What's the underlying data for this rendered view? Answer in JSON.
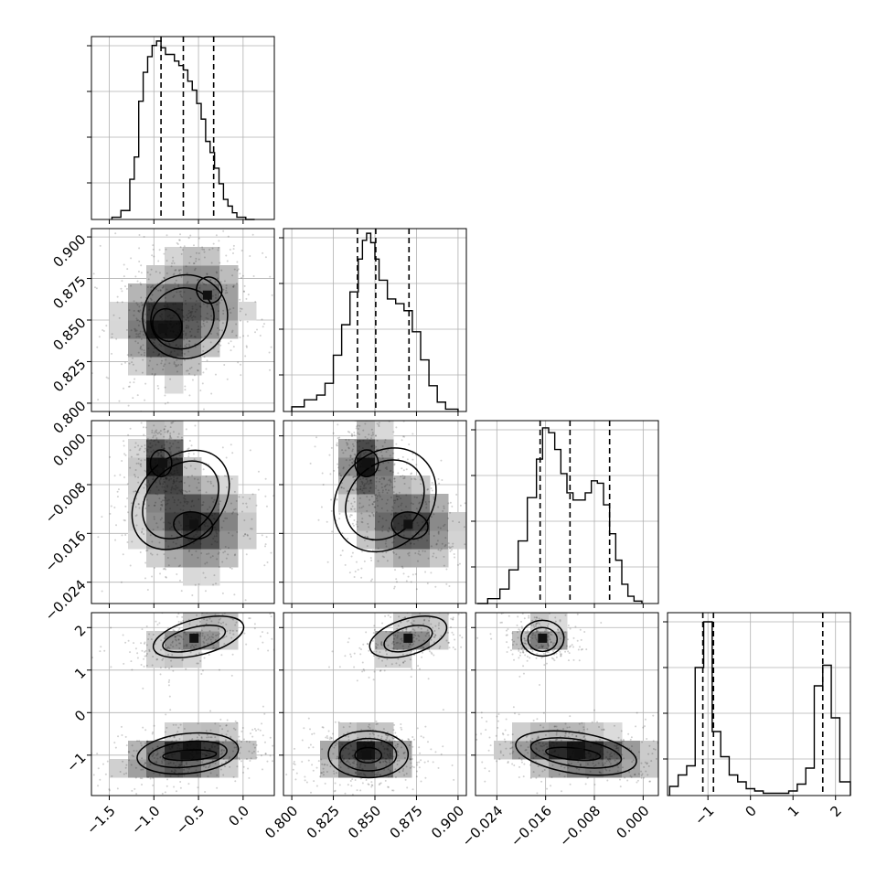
{
  "chart_data": {
    "type": "corner",
    "parameters": [
      {
        "range": [
          -1.7,
          0.35
        ],
        "ticks": [
          -1.5,
          -1.0,
          -0.5,
          0.0
        ],
        "tick_labels": [
          "−1.5",
          "−1.0",
          "−0.5",
          "0.0"
        ],
        "quantiles": [
          -0.92,
          -0.67,
          -0.33
        ],
        "histogram": {
          "bin_edges": [
            -1.47,
            -1.37,
            -1.27,
            -1.22,
            -1.17,
            -1.12,
            -1.07,
            -1.02,
            -0.97,
            -0.92,
            -0.87,
            -0.82,
            -0.77,
            -0.72,
            -0.67,
            -0.62,
            -0.57,
            -0.52,
            -0.47,
            -0.42,
            -0.37,
            -0.32,
            -0.27,
            -0.22,
            -0.17,
            -0.12,
            -0.07,
            0.03,
            0.13
          ],
          "counts": [
            1,
            4,
            18,
            28,
            53,
            66,
            73,
            78,
            80,
            77,
            74,
            74,
            71,
            69,
            67,
            62,
            58,
            52,
            45,
            35,
            30,
            23,
            16,
            9,
            6,
            3,
            1,
            0
          ]
        },
        "hist_ylim": [
          0,
          82
        ]
      },
      {
        "range": [
          0.795,
          0.905
        ],
        "ticks": [
          0.8,
          0.825,
          0.85,
          0.875,
          0.9
        ],
        "tick_labels": [
          "0.800",
          "0.825",
          "0.850",
          "0.875",
          "0.900"
        ],
        "quantiles": [
          0.8395,
          0.8505,
          0.8705
        ],
        "histogram": {
          "bin_edges": [
            0.8,
            0.8075,
            0.815,
            0.82,
            0.825,
            0.83,
            0.835,
            0.84,
            0.8425,
            0.845,
            0.8475,
            0.85,
            0.8525,
            0.8575,
            0.8625,
            0.8675,
            0.8725,
            0.8775,
            0.8825,
            0.8875,
            0.8925,
            0.9
          ],
          "counts": [
            2,
            5,
            7,
            12,
            24,
            37,
            51,
            65,
            73,
            76,
            72,
            65,
            56,
            48,
            46,
            43,
            34,
            22,
            11,
            4,
            1
          ]
        },
        "hist_ylim": [
          0,
          78
        ]
      },
      {
        "range": [
          -0.0275,
          0.0025
        ],
        "ticks": [
          -0.024,
          -0.016,
          -0.008,
          0.0
        ],
        "tick_labels": [
          "−0.024",
          "−0.016",
          "−0.008",
          "0.000"
        ],
        "quantiles": [
          -0.0169,
          -0.012,
          -0.0055
        ],
        "histogram": {
          "bin_edges": [
            -0.0272,
            -0.0255,
            -0.0235,
            -0.022,
            -0.0205,
            -0.019,
            -0.0175,
            -0.0165,
            -0.0155,
            -0.0145,
            -0.0135,
            -0.0125,
            -0.0115,
            -0.0105,
            -0.0095,
            -0.0085,
            -0.0075,
            -0.0065,
            -0.0055,
            -0.0045,
            -0.0035,
            -0.0025,
            -0.0015,
            -0.0002
          ],
          "counts": [
            0,
            2,
            6,
            14,
            26,
            44,
            60,
            73,
            71,
            64,
            54,
            46,
            43,
            43,
            46,
            51,
            50,
            41,
            29,
            18,
            8,
            3,
            1
          ]
        },
        "hist_ylim": [
          0,
          76
        ]
      },
      {
        "range": [
          -1.95,
          2.35
        ],
        "ticks": [
          -1,
          0,
          1,
          2
        ],
        "tick_labels": [
          "−1",
          "0",
          "1",
          "2"
        ],
        "quantiles": [
          -1.12,
          -0.87,
          1.7
        ],
        "histogram": {
          "bin_edges": [
            -1.9,
            -1.7,
            -1.5,
            -1.3,
            -1.1,
            -0.9,
            -0.7,
            -0.5,
            -0.3,
            -0.1,
            0.1,
            0.3,
            0.5,
            0.7,
            0.9,
            1.1,
            1.3,
            1.5,
            1.7,
            1.9,
            2.1,
            2.35
          ],
          "counts": [
            4,
            9,
            13,
            56,
            76,
            28,
            17,
            9,
            6,
            3,
            2,
            1,
            1,
            1,
            2,
            5,
            12,
            48,
            57,
            34,
            6
          ]
        },
        "hist_ylim": [
          0,
          80
        ]
      }
    ],
    "pairs": [
      {
        "x": 0,
        "y": 1,
        "blobs": [
          {
            "cx": -0.9,
            "cy": 0.845,
            "sx": 0.16,
            "sy": 0.011,
            "rot": 0.3,
            "w": 1.0
          },
          {
            "cx": -0.4,
            "cy": 0.865,
            "sx": 0.16,
            "sy": 0.012,
            "rot": 0.4,
            "w": 0.6
          }
        ],
        "contours": [
          {
            "level": 1,
            "cx": -0.65,
            "cy": 0.852,
            "rx": 0.48,
            "ry": 0.025,
            "rot": 0.55
          },
          {
            "level": 2,
            "cx": -0.68,
            "cy": 0.851,
            "rx": 0.36,
            "ry": 0.018,
            "rot": 0.55
          },
          {
            "level": 3,
            "cx": -0.85,
            "cy": 0.847,
            "rx": 0.16,
            "ry": 0.01,
            "rot": 0.4
          },
          {
            "level": 3,
            "cx": -0.38,
            "cy": 0.868,
            "rx": 0.14,
            "ry": 0.008,
            "rot": 0.5
          }
        ]
      },
      {
        "x": 0,
        "y": 2,
        "blobs": [
          {
            "cx": -0.9,
            "cy": -0.0045,
            "sx": 0.1,
            "sy": 0.0022,
            "rot": 0,
            "w": 1.0
          },
          {
            "cx": -0.55,
            "cy": -0.0145,
            "sx": 0.22,
            "sy": 0.0028,
            "rot": -0.2,
            "w": 0.9
          }
        ],
        "contours": [
          {
            "level": 1,
            "cx": -0.7,
            "cy": -0.0105,
            "rx": 0.46,
            "ry": 0.0092,
            "rot": -0.75
          },
          {
            "level": 2,
            "cx": -0.7,
            "cy": -0.0105,
            "rx": 0.36,
            "ry": 0.0072,
            "rot": -0.75
          },
          {
            "level": 3,
            "cx": -0.92,
            "cy": -0.0045,
            "rx": 0.12,
            "ry": 0.0022,
            "rot": 0
          },
          {
            "level": 3,
            "cx": -0.56,
            "cy": -0.0147,
            "rx": 0.22,
            "ry": 0.0022,
            "rot": -0.15
          }
        ]
      },
      {
        "x": 1,
        "y": 2,
        "blobs": [
          {
            "cx": 0.845,
            "cy": -0.0045,
            "sx": 0.006,
            "sy": 0.0022,
            "rot": 0,
            "w": 1.0
          },
          {
            "cx": 0.87,
            "cy": -0.0145,
            "sx": 0.011,
            "sy": 0.0026,
            "rot": -0.2,
            "w": 0.9
          }
        ],
        "contours": [
          {
            "level": 1,
            "cx": 0.856,
            "cy": -0.0105,
            "rx": 0.028,
            "ry": 0.0092,
            "rot": -0.75
          },
          {
            "level": 2,
            "cx": 0.856,
            "cy": -0.0105,
            "rx": 0.021,
            "ry": 0.0072,
            "rot": -0.75
          },
          {
            "level": 3,
            "cx": 0.845,
            "cy": -0.0045,
            "rx": 0.007,
            "ry": 0.0022,
            "rot": 0
          },
          {
            "level": 3,
            "cx": 0.871,
            "cy": -0.0147,
            "rx": 0.011,
            "ry": 0.0022,
            "rot": -0.15
          }
        ]
      },
      {
        "x": 0,
        "y": 3,
        "blobs": [
          {
            "cx": -0.55,
            "cy": 1.75,
            "sx": 0.22,
            "sy": 0.18,
            "rot": 0.3,
            "w": 0.55
          },
          {
            "cx": -0.65,
            "cy": -1.0,
            "sx": 0.26,
            "sy": 0.2,
            "rot": 0.15,
            "w": 1.0
          }
        ],
        "contours": [
          {
            "level": 1,
            "cx": -0.5,
            "cy": 1.78,
            "rx": 0.52,
            "ry": 0.42,
            "rot": 0.25
          },
          {
            "level": 2,
            "cx": -0.55,
            "cy": 1.74,
            "rx": 0.36,
            "ry": 0.26,
            "rot": 0.25
          },
          {
            "level": 1,
            "cx": -0.62,
            "cy": -0.96,
            "rx": 0.57,
            "ry": 0.47,
            "rot": 0.1
          },
          {
            "level": 2,
            "cx": -0.62,
            "cy": -0.98,
            "rx": 0.44,
            "ry": 0.3,
            "rot": 0.1
          },
          {
            "level": 3,
            "cx": -0.6,
            "cy": -1.0,
            "rx": 0.3,
            "ry": 0.12,
            "rot": 0.05
          }
        ]
      },
      {
        "x": 1,
        "y": 3,
        "blobs": [
          {
            "cx": 0.87,
            "cy": 1.75,
            "sx": 0.01,
            "sy": 0.18,
            "rot": 0.3,
            "w": 0.55
          },
          {
            "cx": 0.845,
            "cy": -1.0,
            "sx": 0.01,
            "sy": 0.22,
            "rot": 0,
            "w": 1.0
          }
        ],
        "contours": [
          {
            "level": 1,
            "cx": 0.87,
            "cy": 1.78,
            "rx": 0.024,
            "ry": 0.42,
            "rot": 0.3
          },
          {
            "level": 2,
            "cx": 0.87,
            "cy": 1.74,
            "rx": 0.015,
            "ry": 0.27,
            "rot": 0.3
          },
          {
            "level": 1,
            "cx": 0.846,
            "cy": -0.98,
            "rx": 0.024,
            "ry": 0.55,
            "rot": 0
          },
          {
            "level": 2,
            "cx": 0.846,
            "cy": -0.99,
            "rx": 0.017,
            "ry": 0.38,
            "rot": 0
          },
          {
            "level": 3,
            "cx": 0.846,
            "cy": -1.0,
            "rx": 0.008,
            "ry": 0.18,
            "rot": 0
          }
        ]
      },
      {
        "x": 2,
        "y": 3,
        "blobs": [
          {
            "cx": -0.0165,
            "cy": 1.75,
            "sx": 0.0018,
            "sy": 0.18,
            "rot": 0,
            "w": 0.55
          },
          {
            "cx": -0.0105,
            "cy": -0.95,
            "sx": 0.0045,
            "sy": 0.2,
            "rot": -0.1,
            "w": 1.0
          }
        ],
        "contours": [
          {
            "level": 1,
            "cx": -0.0165,
            "cy": 1.75,
            "rx": 0.0035,
            "ry": 0.42,
            "rot": 0
          },
          {
            "level": 2,
            "cx": -0.0165,
            "cy": 1.72,
            "rx": 0.0024,
            "ry": 0.28,
            "rot": 0
          },
          {
            "level": 1,
            "cx": -0.011,
            "cy": -0.95,
            "rx": 0.01,
            "ry": 0.48,
            "rot": -0.15
          },
          {
            "level": 2,
            "cx": -0.011,
            "cy": -0.95,
            "rx": 0.0075,
            "ry": 0.32,
            "rot": -0.15
          },
          {
            "level": 3,
            "cx": -0.0115,
            "cy": -0.97,
            "rx": 0.0045,
            "ry": 0.14,
            "rot": -0.1
          }
        ]
      }
    ]
  }
}
